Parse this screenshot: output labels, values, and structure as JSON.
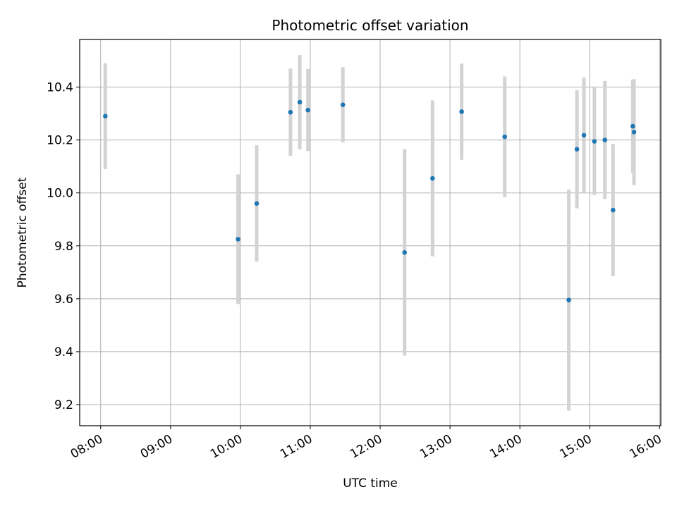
{
  "chart_data": {
    "type": "scatter",
    "title": "Photometric offset variation",
    "xlabel": "UTC time",
    "ylabel": "Photometric offset",
    "x_ticks": [
      "08:00",
      "09:00",
      "10:00",
      "11:00",
      "12:00",
      "13:00",
      "14:00",
      "15:00",
      "16:00"
    ],
    "y_ticks": [
      "9.2",
      "9.4",
      "9.6",
      "9.8",
      "10.0",
      "10.2",
      "10.4"
    ],
    "xlim": [
      "07:42",
      "16:01"
    ],
    "ylim": [
      9.12,
      10.58
    ],
    "grid": true,
    "point_color": "#1f77b4",
    "errorbar_color": "#d3d3d3",
    "points": [
      {
        "x": "08:04",
        "y": 10.29,
        "yerr": 0.2
      },
      {
        "x": "09:58",
        "y": 9.825,
        "yerr": 0.245
      },
      {
        "x": "10:14",
        "y": 9.96,
        "yerr": 0.22
      },
      {
        "x": "10:43",
        "y": 10.305,
        "yerr": 0.165
      },
      {
        "x": "10:51",
        "y": 10.343,
        "yerr": 0.178
      },
      {
        "x": "10:58",
        "y": 10.313,
        "yerr": 0.155
      },
      {
        "x": "11:28",
        "y": 10.333,
        "yerr": 0.142
      },
      {
        "x": "12:21",
        "y": 9.775,
        "yerr": 0.39
      },
      {
        "x": "12:45",
        "y": 10.055,
        "yerr": 0.295
      },
      {
        "x": "13:10",
        "y": 10.307,
        "yerr": 0.182
      },
      {
        "x": "13:47",
        "y": 10.212,
        "yerr": 0.228
      },
      {
        "x": "14:42",
        "y": 9.595,
        "yerr": 0.418
      },
      {
        "x": "14:49",
        "y": 10.165,
        "yerr": 0.223
      },
      {
        "x": "14:55",
        "y": 10.218,
        "yerr": 0.218
      },
      {
        "x": "15:04",
        "y": 10.195,
        "yerr": 0.203
      },
      {
        "x": "15:13",
        "y": 10.2,
        "yerr": 0.223
      },
      {
        "x": "15:20",
        "y": 9.935,
        "yerr": 0.25
      },
      {
        "x": "15:37",
        "y": 10.252,
        "yerr": 0.176
      },
      {
        "x": "15:38",
        "y": 10.23,
        "yerr": 0.2
      }
    ]
  }
}
